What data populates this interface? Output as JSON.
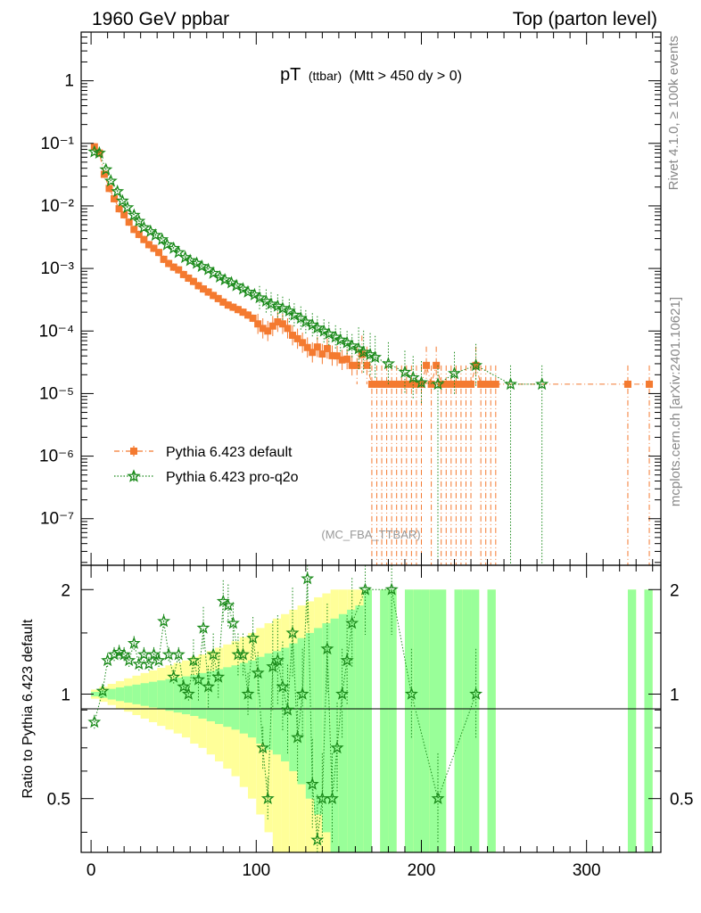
{
  "header": {
    "left": "1960 GeV ppbar",
    "right": "Top (parton level)"
  },
  "side_labels": {
    "rivet": "Rivet 4.1.0, ≥ 100k events",
    "mcplots": "mcplots.cern.ch [arXiv:2401.10621]"
  },
  "chart_data": {
    "type": "scatter",
    "title_main": "pT",
    "title_small": "(ttbar)",
    "title_rest": "(Mtt > 450 dy > 0)",
    "watermark": "(MC_FBA_TTBAR)",
    "xlabel": "",
    "xlim": [
      -6,
      345
    ],
    "x_ticks": [
      0,
      100,
      200,
      300
    ],
    "upper": {
      "yscale": "log",
      "ylim": [
        1.8e-08,
        6.0
      ],
      "ylabel": "",
      "y_ticks": [
        {
          "value": 1,
          "label": "1"
        },
        {
          "value": 0.1,
          "label": "10⁻¹"
        },
        {
          "value": 0.01,
          "label": "10⁻²"
        },
        {
          "value": 0.001,
          "label": "10⁻³"
        },
        {
          "value": 0.0001,
          "label": "10⁻⁴"
        },
        {
          "value": 1e-05,
          "label": "10⁻⁵"
        },
        {
          "value": 1e-06,
          "label": "10⁻⁶"
        },
        {
          "value": 1e-07,
          "label": "10⁻⁷"
        }
      ]
    },
    "lower": {
      "yscale": "log",
      "ylim": [
        0.35,
        2.35
      ],
      "ylabel": "Ratio to Pythia 6.423 default",
      "y_ticks": [
        {
          "value": 0.5,
          "label": "0.5"
        },
        {
          "value": 1,
          "label": "1"
        },
        {
          "value": 2,
          "label": "2"
        }
      ]
    },
    "legend": {
      "position": "lower-left",
      "entries": [
        "Pythia 6.423 default",
        "Pythia 6.423 pro-q2o"
      ]
    },
    "series": [
      {
        "name": "Pythia 6.423 default",
        "color": "#f47a30",
        "marker": "square",
        "line": "dashdot",
        "x": [
          2,
          5,
          8,
          11,
          14,
          17,
          20,
          23,
          26,
          29,
          32,
          35,
          38,
          41,
          44,
          47,
          50,
          53,
          56,
          59,
          62,
          65,
          68,
          71,
          74,
          77,
          80,
          83,
          86,
          89,
          92,
          95,
          98,
          101,
          104,
          107,
          110,
          113,
          116,
          119,
          122,
          125,
          128,
          131,
          134,
          137,
          140,
          143,
          146,
          149,
          152,
          155,
          158,
          161,
          164,
          167,
          170,
          173,
          176,
          179,
          182,
          185,
          188,
          191,
          194,
          197,
          200,
          203,
          206,
          209,
          212,
          215,
          218,
          221,
          224,
          227,
          230,
          233,
          236,
          239,
          242,
          245,
          325,
          338
        ],
        "y": [
          0.088,
          0.07,
          0.032,
          0.019,
          0.013,
          0.009,
          0.0072,
          0.0055,
          0.0042,
          0.0035,
          0.0029,
          0.0024,
          0.0021,
          0.0018,
          0.0014,
          0.0012,
          0.00105,
          0.00095,
          0.0008,
          0.0007,
          0.00062,
          0.00053,
          0.00047,
          0.00042,
          0.00037,
          0.00033,
          0.00029,
          0.00026,
          0.00024,
          0.00022,
          0.0002,
          0.00018,
          0.00016,
          0.00013,
          0.00011,
          0.0001,
          0.00012,
          0.00014,
          0.00013,
          0.00011,
          8.55e-05,
          7.53e-05,
          6.51e-05,
          5.45e-05,
          4.55e-05,
          5.55e-05,
          4.29e-05,
          5.24e-05,
          4.04e-05,
          4e-05,
          3.45e-05,
          3.55e-05,
          2.82e-05,
          2.82e-05,
          4.22e-05,
          2.82e-05,
          1.41e-05,
          1.41e-05,
          1.41e-05,
          1.41e-05,
          1.41e-05,
          1.41e-05,
          1.41e-05,
          1.41e-05,
          1.41e-05,
          1.41e-05,
          1.41e-05,
          2.82e-05,
          1.41e-05,
          2.82e-05,
          1.41e-05,
          1.41e-05,
          1.41e-05,
          1.41e-05,
          1.41e-05,
          1.41e-05,
          1.41e-05,
          2.82e-05,
          1.41e-05,
          1.41e-05,
          1.41e-05,
          1.41e-05,
          1.41e-05,
          1.41e-05
        ]
      },
      {
        "name": "Pythia 6.423 pro-q2o",
        "color": "#1a8a1a",
        "marker": "star",
        "line": "dotted",
        "x": [
          2,
          5,
          9,
          12,
          16,
          19,
          22,
          26,
          29,
          32,
          36,
          39,
          43,
          46,
          50,
          53,
          57,
          60,
          64,
          67,
          71,
          74,
          78,
          81,
          85,
          88,
          92,
          95,
          99,
          102,
          106,
          109,
          113,
          116,
          120,
          123,
          127,
          130,
          134,
          137,
          141,
          144,
          148,
          151,
          155,
          158,
          162,
          165,
          169,
          172,
          180,
          190,
          195,
          200,
          210,
          220,
          233,
          254,
          273
        ],
        "y": [
          0.073,
          0.07,
          0.038,
          0.025,
          0.017,
          0.012,
          0.0094,
          0.0071,
          0.0057,
          0.0045,
          0.0039,
          0.0034,
          0.0029,
          0.0024,
          0.0021,
          0.0018,
          0.0015,
          0.00134,
          0.00121,
          0.00108,
          0.00096,
          0.00084,
          0.00073,
          0.00066,
          0.00059,
          0.00053,
          0.00047,
          0.00042,
          0.00038,
          0.00034,
          0.0003,
          0.00027,
          0.00025,
          0.00023,
          0.00021,
          0.00018,
          0.00016,
          0.00014,
          0.000125,
          0.000112,
          0.0001,
          9e-05,
          8e-05,
          7.2e-05,
          6.5e-05,
          5.8e-05,
          5.2e-05,
          4.6e-05,
          4.2e-05,
          3.8e-05,
          3e-05,
          2.2e-05,
          1.8e-05,
          1.5e-05,
          1.41e-05,
          2.1e-05,
          2.82e-05,
          1.41e-05,
          1.41e-05
        ]
      }
    ],
    "ratio": {
      "reference": "Pythia 6.423 default",
      "band_edges": [
        0,
        5,
        10,
        15,
        20,
        25,
        30,
        35,
        40,
        45,
        50,
        55,
        60,
        65,
        70,
        75,
        80,
        85,
        90,
        95,
        100,
        105,
        110,
        115,
        120,
        125,
        130,
        135,
        140,
        145,
        150,
        155,
        160,
        165,
        170,
        175,
        180,
        185,
        190,
        195,
        200,
        205,
        210,
        215,
        220,
        225,
        230,
        235,
        240,
        245,
        325,
        330,
        335,
        340
      ],
      "band_inner": [
        0.015,
        0.025,
        0.035,
        0.045,
        0.055,
        0.065,
        0.075,
        0.085,
        0.095,
        0.105,
        0.115,
        0.125,
        0.135,
        0.15,
        0.165,
        0.18,
        0.195,
        0.21,
        0.23,
        0.25,
        0.28,
        0.31,
        0.33,
        0.36,
        0.4,
        0.45,
        0.5,
        0.55,
        0.6,
        0.65,
        0.7,
        0.75,
        0.8,
        1,
        1,
        1,
        1,
        1,
        1,
        1,
        1,
        1,
        1,
        1,
        1,
        1,
        1,
        1,
        1,
        1,
        1,
        1,
        1
      ],
      "band_outer": [
        0.03,
        0.05,
        0.07,
        0.09,
        0.11,
        0.13,
        0.15,
        0.17,
        0.19,
        0.21,
        0.23,
        0.25,
        0.28,
        0.3,
        0.33,
        0.36,
        0.39,
        0.42,
        0.46,
        0.5,
        0.55,
        0.6,
        0.65,
        0.7,
        0.75,
        0.8,
        0.85,
        0.9,
        0.95,
        1,
        1,
        1,
        1,
        1,
        1,
        1,
        1,
        1,
        1,
        1,
        1,
        1,
        1,
        1,
        1,
        1,
        1,
        1,
        1,
        1,
        1,
        1,
        1
      ],
      "gaps": [
        [
          172,
          175
        ],
        [
          184,
          188
        ],
        [
          214,
          218
        ],
        [
          228,
          231
        ],
        [
          236,
          238
        ],
        [
          245,
          325
        ],
        [
          330,
          335
        ]
      ],
      "points": [
        {
          "x": 2,
          "y": 0.83
        },
        {
          "x": 7,
          "y": 1.02
        },
        {
          "x": 10,
          "y": 1.25
        },
        {
          "x": 14,
          "y": 1.3
        },
        {
          "x": 17,
          "y": 1.32
        },
        {
          "x": 20,
          "y": 1.3
        },
        {
          "x": 23,
          "y": 1.25
        },
        {
          "x": 26,
          "y": 1.4
        },
        {
          "x": 29,
          "y": 1.22
        },
        {
          "x": 32,
          "y": 1.3
        },
        {
          "x": 35,
          "y": 1.22
        },
        {
          "x": 38,
          "y": 1.3
        },
        {
          "x": 41,
          "y": 1.25
        },
        {
          "x": 44,
          "y": 1.62
        },
        {
          "x": 47,
          "y": 1.3
        },
        {
          "x": 50,
          "y": 1.12
        },
        {
          "x": 53,
          "y": 1.3
        },
        {
          "x": 56,
          "y": 1.05
        },
        {
          "x": 59,
          "y": 1.0
        },
        {
          "x": 62,
          "y": 1.25
        },
        {
          "x": 65,
          "y": 1.1
        },
        {
          "x": 68,
          "y": 1.55
        },
        {
          "x": 71,
          "y": 1.05
        },
        {
          "x": 74,
          "y": 1.3
        },
        {
          "x": 77,
          "y": 1.12
        },
        {
          "x": 80,
          "y": 1.85
        },
        {
          "x": 83,
          "y": 1.8
        },
        {
          "x": 86,
          "y": 1.6
        },
        {
          "x": 89,
          "y": 1.3
        },
        {
          "x": 92,
          "y": 1.3
        },
        {
          "x": 95,
          "y": 1.0
        },
        {
          "x": 98,
          "y": 1.45
        },
        {
          "x": 101,
          "y": 1.15
        },
        {
          "x": 104,
          "y": 0.7
        },
        {
          "x": 107,
          "y": 0.5
        },
        {
          "x": 110,
          "y": 1.2
        },
        {
          "x": 113,
          "y": 1.25
        },
        {
          "x": 116,
          "y": 1.05
        },
        {
          "x": 119,
          "y": 0.9
        },
        {
          "x": 122,
          "y": 1.5
        },
        {
          "x": 125,
          "y": 0.75
        },
        {
          "x": 128,
          "y": 1.0
        },
        {
          "x": 131,
          "y": 2.15
        },
        {
          "x": 134,
          "y": 0.55
        },
        {
          "x": 137,
          "y": 0.38
        },
        {
          "x": 140,
          "y": 0.5
        },
        {
          "x": 143,
          "y": 1.35
        },
        {
          "x": 146,
          "y": 0.5
        },
        {
          "x": 149,
          "y": 0.7
        },
        {
          "x": 152,
          "y": 1.0
        },
        {
          "x": 155,
          "y": 1.25
        },
        {
          "x": 158,
          "y": 1.6
        },
        {
          "x": 166,
          "y": 2.0
        },
        {
          "x": 182,
          "y": 2.0
        },
        {
          "x": 194,
          "y": 1.0
        },
        {
          "x": 210,
          "y": 0.5
        },
        {
          "x": 233,
          "y": 1.0
        }
      ]
    }
  }
}
